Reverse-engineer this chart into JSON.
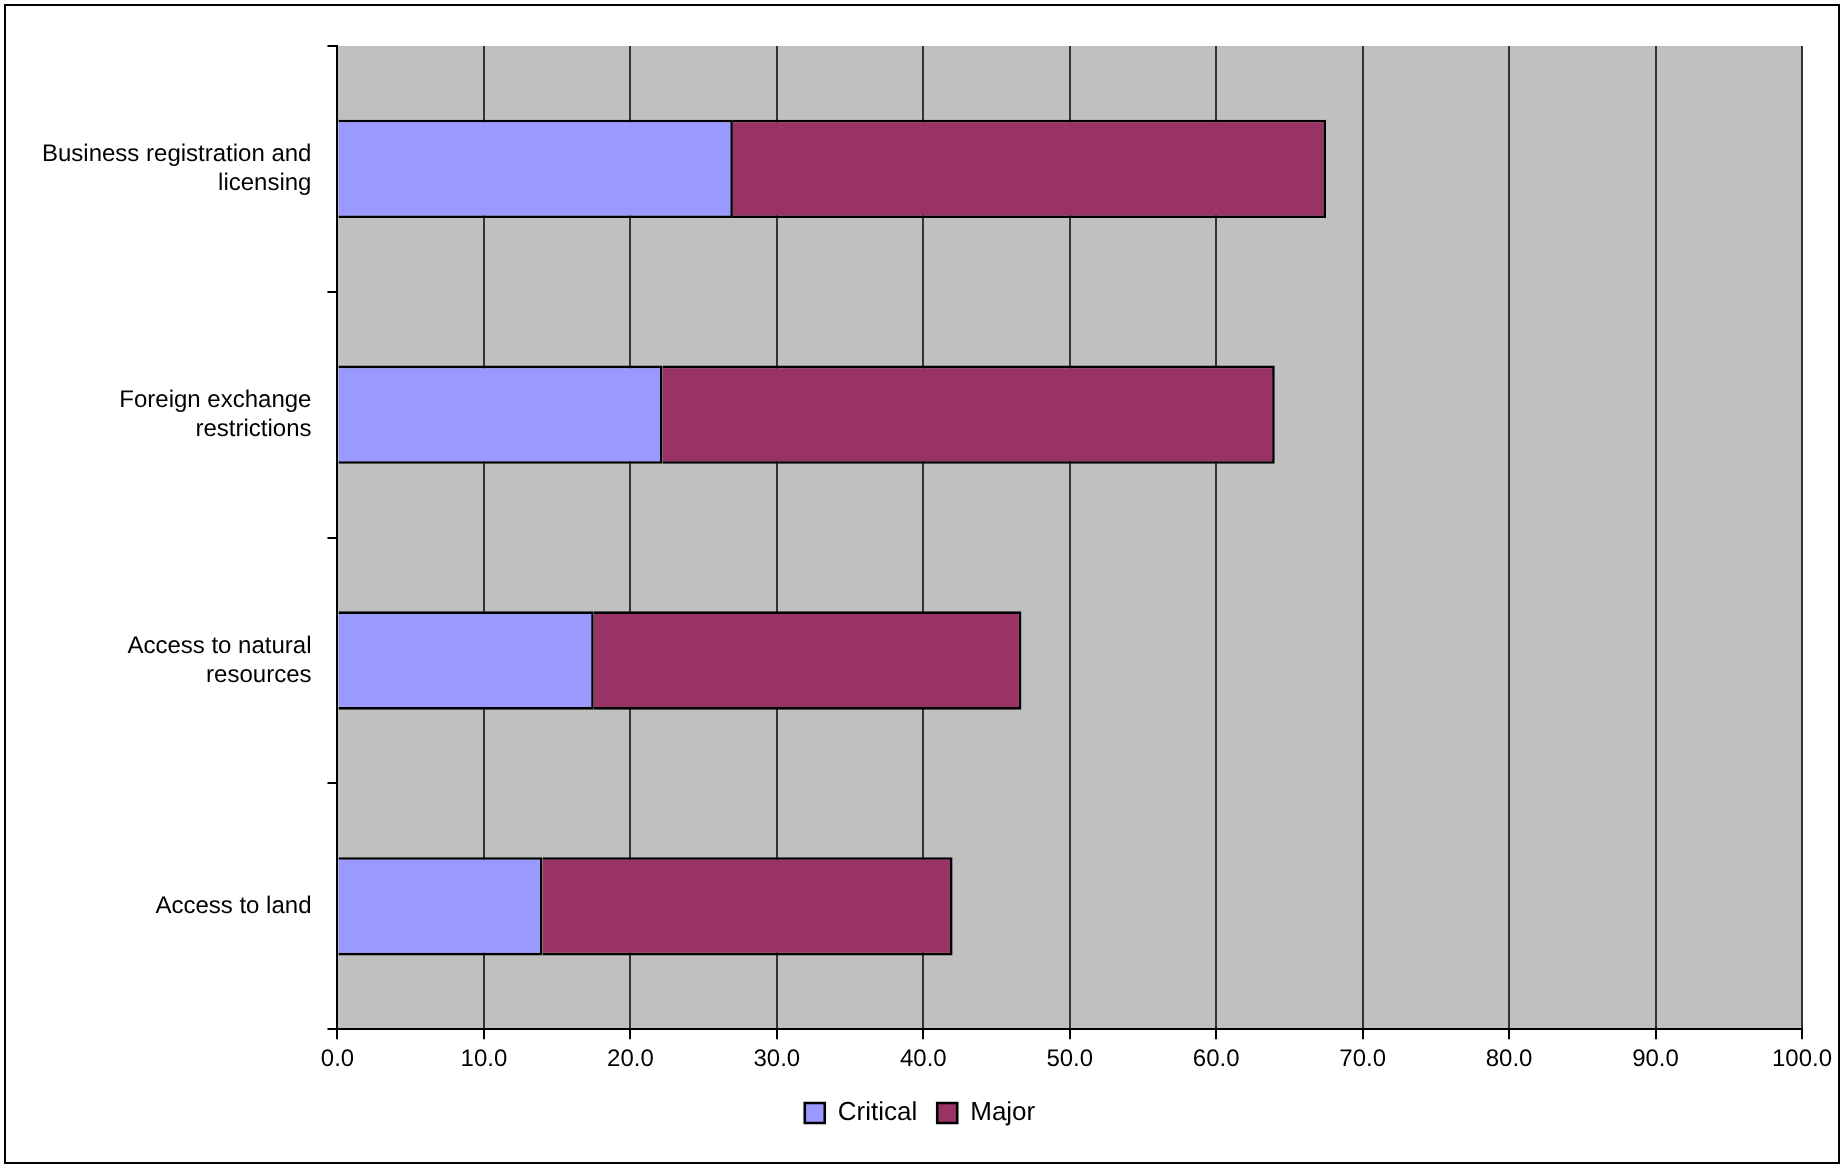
{
  "chart_data": {
    "type": "bar",
    "orientation": "horizontal",
    "stacked": true,
    "categories": [
      "Business registration and licensing",
      "Foreign exchange restrictions",
      "Access to natural resources",
      "Access to land"
    ],
    "series": [
      {
        "name": "Critical",
        "color": "#9999ff",
        "values": [
          27.0,
          22.2,
          17.5,
          14.0
        ]
      },
      {
        "name": "Major",
        "color": "#993366",
        "values": [
          40.5,
          41.8,
          29.2,
          28.0
        ]
      }
    ],
    "xlim": [
      0,
      100
    ],
    "xticks": [
      {
        "value": 0,
        "label": "0.0"
      },
      {
        "value": 10,
        "label": "10.0"
      },
      {
        "value": 20,
        "label": "20.0"
      },
      {
        "value": 30,
        "label": "30.0"
      },
      {
        "value": 40,
        "label": "40.0"
      },
      {
        "value": 50,
        "label": "50.0"
      },
      {
        "value": 60,
        "label": "60.0"
      },
      {
        "value": 70,
        "label": "70.0"
      },
      {
        "value": 80,
        "label": "80.0"
      },
      {
        "value": 90,
        "label": "90.0"
      },
      {
        "value": 100,
        "label": "100.0"
      }
    ],
    "grid": "x",
    "legend": "bottom"
  }
}
